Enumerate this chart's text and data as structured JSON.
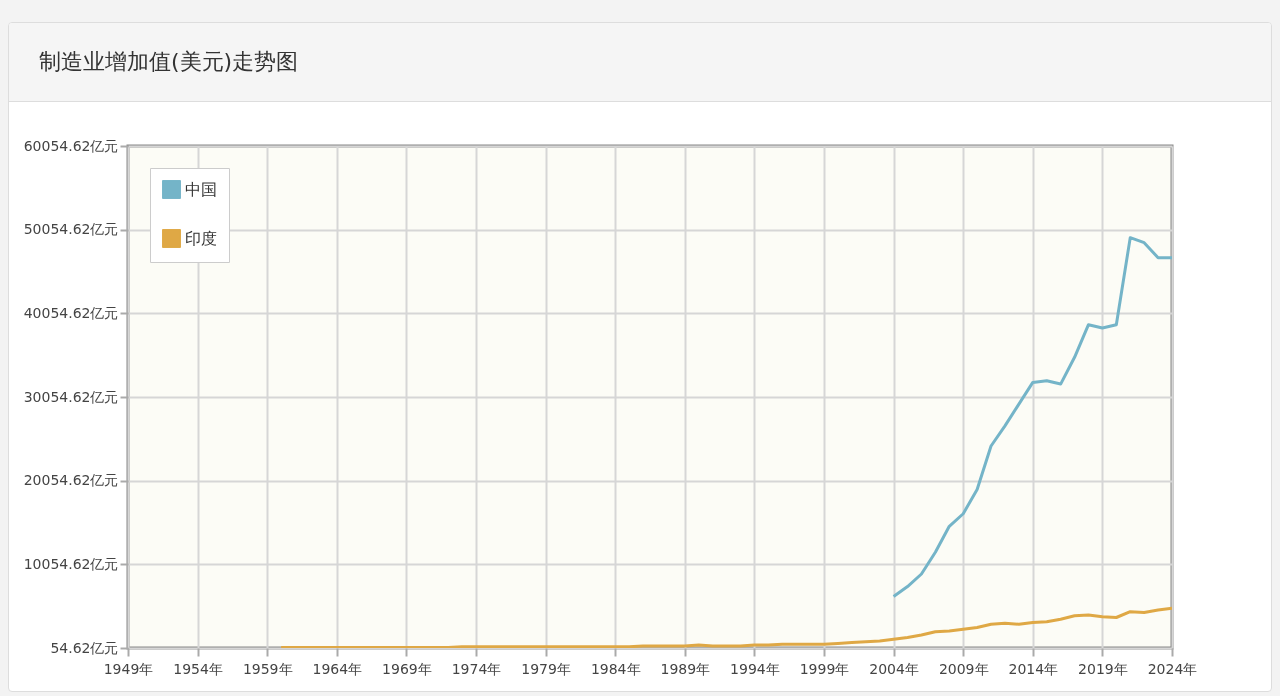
{
  "chart_data": {
    "type": "line",
    "title": "制造业增加值(美元)走势图",
    "xlim": [
      1949,
      2024
    ],
    "xticks": [
      {
        "value": 1949,
        "label": "1949年"
      },
      {
        "value": 1954,
        "label": "1954年"
      },
      {
        "value": 1959,
        "label": "1959年"
      },
      {
        "value": 1964,
        "label": "1964年"
      },
      {
        "value": 1969,
        "label": "1969年"
      },
      {
        "value": 1974,
        "label": "1974年"
      },
      {
        "value": 1979,
        "label": "1979年"
      },
      {
        "value": 1984,
        "label": "1984年"
      },
      {
        "value": 1989,
        "label": "1989年"
      },
      {
        "value": 1994,
        "label": "1994年"
      },
      {
        "value": 1999,
        "label": "1999年"
      },
      {
        "value": 2004,
        "label": "2004年"
      },
      {
        "value": 2009,
        "label": "2009年"
      },
      {
        "value": 2014,
        "label": "2014年"
      },
      {
        "value": 2019,
        "label": "2019年"
      },
      {
        "value": 2024,
        "label": "2024年"
      }
    ],
    "ylim": [
      54.62,
      60054.62
    ],
    "yticks": [
      {
        "value": 54.62,
        "label": "54.62亿元"
      },
      {
        "value": 10054.62,
        "label": "10054.62亿元"
      },
      {
        "value": 20054.62,
        "label": "20054.62亿元"
      },
      {
        "value": 30054.62,
        "label": "30054.62亿元"
      },
      {
        "value": 40054.62,
        "label": "40054.62亿元"
      },
      {
        "value": 50054.62,
        "label": "50054.62亿元"
      },
      {
        "value": 60054.62,
        "label": "60054.62亿元"
      }
    ],
    "grid": true,
    "legend": "top left",
    "marker": "none",
    "line_style": "solid",
    "series": [
      {
        "name": "中国",
        "color": "#74b4c8",
        "x": [
          2004,
          2005,
          2006,
          2007,
          2008,
          2009,
          2010,
          2011,
          2012,
          2013,
          2014,
          2015,
          2016,
          2017,
          2018,
          2019,
          2020,
          2021,
          2022,
          2023,
          2024
        ],
        "values": [
          6200,
          7400,
          8900,
          11500,
          14600,
          16100,
          19000,
          24200,
          26600,
          29200,
          31800,
          32000,
          31600,
          34800,
          38700,
          38300,
          38700,
          49100,
          48500,
          46700,
          46700
        ]
      },
      {
        "name": "印度",
        "color": "#dfa845",
        "x": [
          1960,
          1961,
          1962,
          1963,
          1964,
          1965,
          1966,
          1967,
          1968,
          1969,
          1970,
          1971,
          1972,
          1973,
          1974,
          1975,
          1976,
          1977,
          1978,
          1979,
          1980,
          1981,
          1982,
          1983,
          1984,
          1985,
          1986,
          1987,
          1988,
          1989,
          1990,
          1991,
          1992,
          1993,
          1994,
          1995,
          1996,
          1997,
          1998,
          1999,
          2000,
          2001,
          2002,
          2003,
          2004,
          2005,
          2006,
          2007,
          2008,
          2009,
          2010,
          2011,
          2012,
          2013,
          2014,
          2015,
          2016,
          2017,
          2018,
          2019,
          2020,
          2021,
          2022,
          2023,
          2024
        ],
        "values": [
          100,
          100,
          100,
          100,
          100,
          100,
          100,
          100,
          100,
          100,
          100,
          100,
          100,
          200,
          200,
          200,
          200,
          200,
          200,
          200,
          200,
          200,
          200,
          200,
          200,
          200,
          300,
          300,
          300,
          300,
          400,
          300,
          300,
          300,
          400,
          400,
          500,
          500,
          500,
          500,
          600,
          700,
          800,
          900,
          1100,
          1300,
          1600,
          2000,
          2100,
          2300,
          2500,
          2900,
          3000,
          2900,
          3100,
          3200,
          3500,
          3900,
          4000,
          3800,
          3700,
          4400,
          4300,
          4600,
          4800
        ]
      }
    ]
  }
}
